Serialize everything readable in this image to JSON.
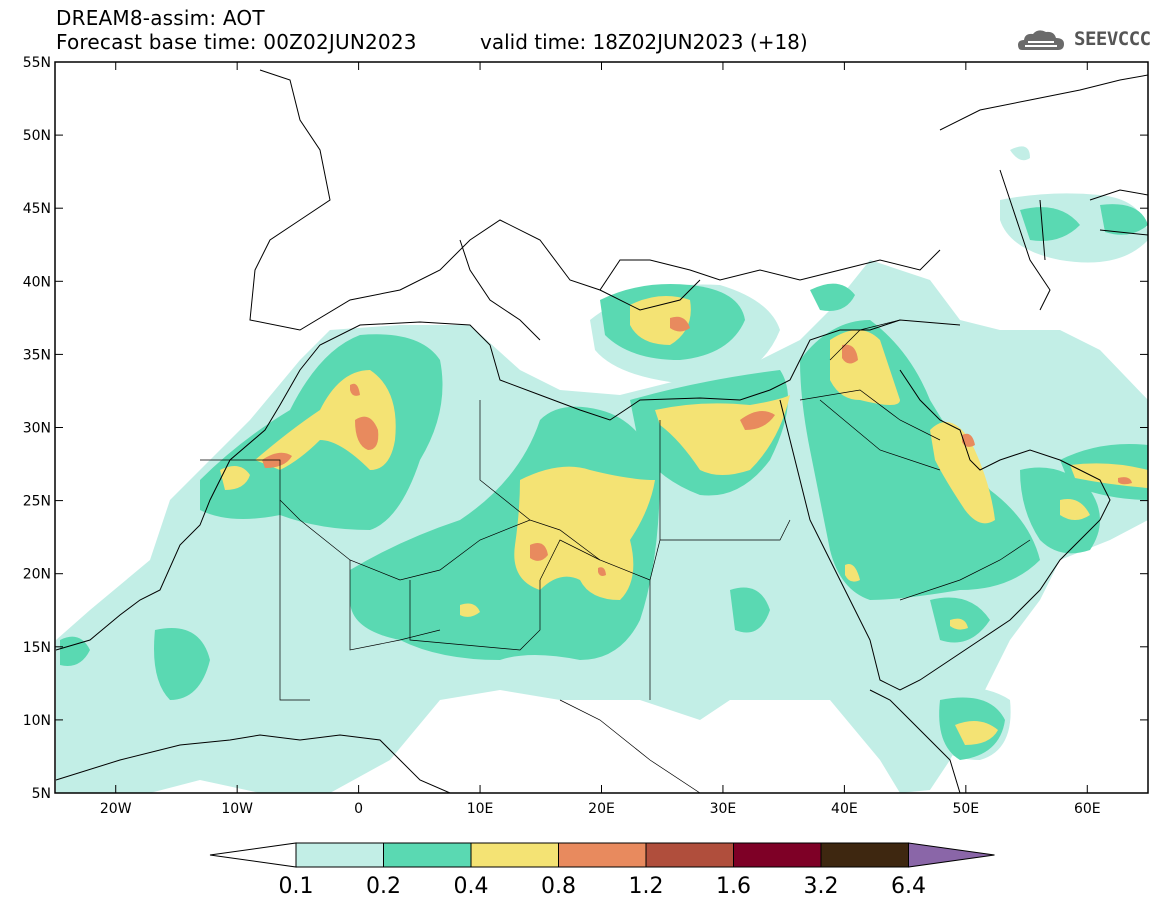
{
  "header": {
    "title": "DREAM8-assim: AOT",
    "base_time": "Forecast base time: 00Z02JUN2023",
    "valid_time": "valid time: 18Z02JUN2023 (+18)",
    "logo_text": "SEEVCCC",
    "logo_icon": "cloud-icon"
  },
  "map": {
    "lon_range": [
      -25,
      65
    ],
    "lat_range": [
      5,
      55
    ],
    "lat_labels": [
      "55N",
      "50N",
      "45N",
      "40N",
      "35N",
      "30N",
      "25N",
      "20N",
      "15N",
      "10N",
      "5N"
    ],
    "lon_labels": [
      "20W",
      "10W",
      "0",
      "10E",
      "20E",
      "30E",
      "40E",
      "50E",
      "60E"
    ]
  },
  "legend": {
    "levels": [
      "0.1",
      "0.2",
      "0.4",
      "0.8",
      "1.2",
      "1.6",
      "3.2",
      "6.4"
    ],
    "colors": [
      "#ffffff",
      "#c2eee6",
      "#5ad9b2",
      "#f4e374",
      "#e88a5e",
      "#b04e3c",
      "#7e0026",
      "#3e2710",
      "#8a66a8"
    ]
  }
}
